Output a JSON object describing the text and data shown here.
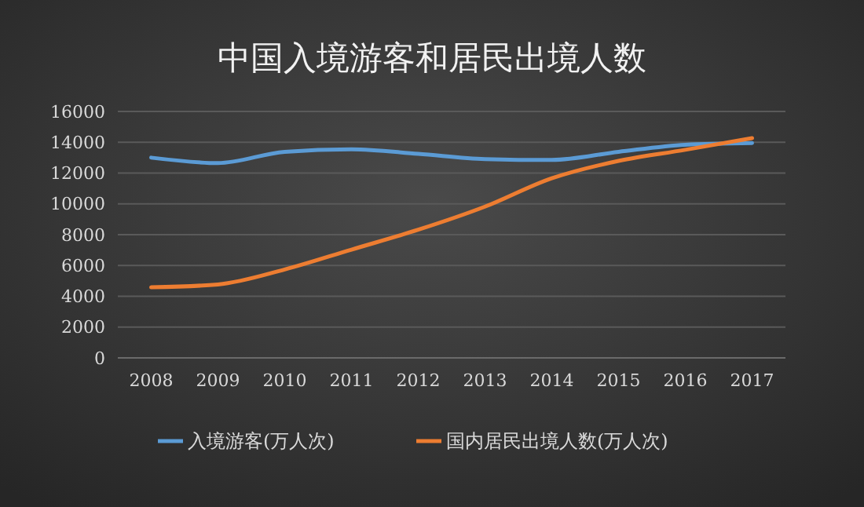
{
  "chart_data": {
    "type": "line",
    "title": "中国入境游客和居民出境人数",
    "categories": [
      "2008",
      "2009",
      "2010",
      "2011",
      "2012",
      "2013",
      "2014",
      "2015",
      "2016",
      "2017"
    ],
    "series": [
      {
        "name": "入境游客(万人次)",
        "color": "#5b9bd5",
        "values": [
          13000,
          12650,
          13380,
          13540,
          13250,
          12910,
          12850,
          13380,
          13840,
          13950
        ]
      },
      {
        "name": "国内居民出境人数(万人次)",
        "color": "#ed7d31",
        "values": [
          4580,
          4770,
          5740,
          7030,
          8320,
          9820,
          11660,
          12790,
          13510,
          14270
        ]
      }
    ],
    "ylim": [
      0,
      16000
    ],
    "yticks": [
      0,
      2000,
      4000,
      6000,
      8000,
      10000,
      12000,
      14000,
      16000
    ],
    "grid": "y",
    "legend": "bottom",
    "marker": "none",
    "line_style": "solid"
  }
}
